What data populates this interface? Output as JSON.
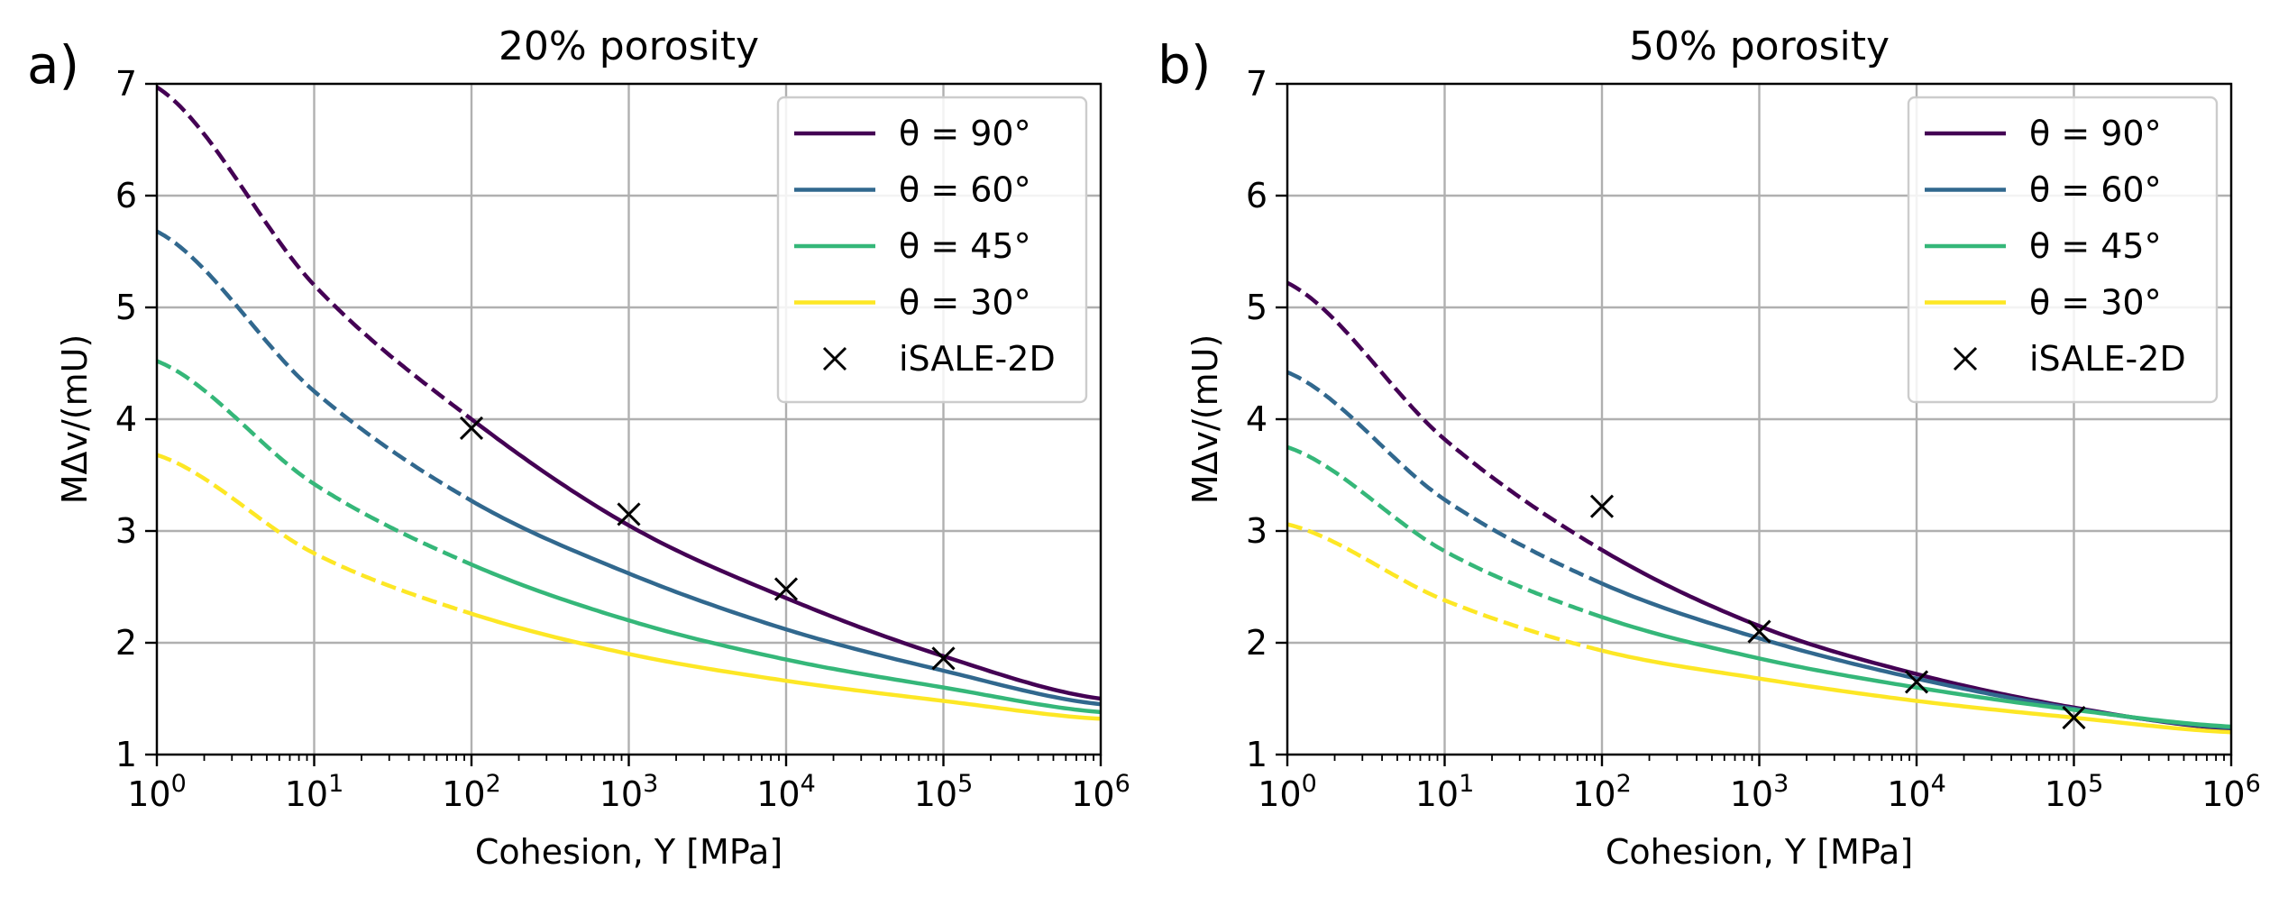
{
  "chart_data": [
    {
      "type": "line",
      "panel_label": "a)",
      "title": "20% porosity",
      "xlabel": "Cohesion, Y [MPa]",
      "ylabel": "MΔv/(mU)",
      "xscale": "log",
      "xlim": [
        1,
        1000000
      ],
      "ylim": [
        1,
        7
      ],
      "xticks": [
        1,
        10,
        100,
        1000,
        10000,
        100000,
        1000000
      ],
      "xtick_labels": [
        [
          "10",
          "0"
        ],
        [
          "10",
          "1"
        ],
        [
          "10",
          "2"
        ],
        [
          "10",
          "3"
        ],
        [
          "10",
          "4"
        ],
        [
          "10",
          "5"
        ],
        [
          "10",
          "6"
        ]
      ],
      "yticks": [
        1,
        2,
        3,
        4,
        5,
        6,
        7
      ],
      "ytick_labels": [
        "1",
        "2",
        "3",
        "4",
        "5",
        "6",
        "7"
      ],
      "grid": true,
      "legend_position": "top-right",
      "x": [
        1,
        10,
        100,
        1000,
        10000,
        100000,
        1000000
      ],
      "dashed_below_x": 100,
      "series": [
        {
          "name": "θ = 90°",
          "color": "#440154",
          "values": [
            6.97,
            5.2,
            4.0,
            3.05,
            2.4,
            1.88,
            1.5
          ]
        },
        {
          "name": "θ = 60°",
          "color": "#31688e",
          "values": [
            5.68,
            4.25,
            3.27,
            2.62,
            2.12,
            1.75,
            1.45
          ]
        },
        {
          "name": "θ = 45°",
          "color": "#35b779",
          "values": [
            4.52,
            3.42,
            2.7,
            2.2,
            1.85,
            1.6,
            1.38
          ]
        },
        {
          "name": "θ = 30°",
          "color": "#fde725",
          "values": [
            3.68,
            2.8,
            2.26,
            1.9,
            1.66,
            1.48,
            1.32
          ]
        }
      ],
      "markers": {
        "name": "iSALE-2D",
        "x": [
          100,
          1000,
          10000,
          100000
        ],
        "y": [
          3.92,
          3.15,
          2.48,
          1.86
        ]
      }
    },
    {
      "type": "line",
      "panel_label": "b)",
      "title": "50% porosity",
      "xlabel": "Cohesion, Y [MPa]",
      "ylabel": "MΔv/(mU)",
      "xscale": "log",
      "xlim": [
        1,
        1000000
      ],
      "ylim": [
        1,
        7
      ],
      "xticks": [
        1,
        10,
        100,
        1000,
        10000,
        100000,
        1000000
      ],
      "xtick_labels": [
        [
          "10",
          "0"
        ],
        [
          "10",
          "1"
        ],
        [
          "10",
          "2"
        ],
        [
          "10",
          "3"
        ],
        [
          "10",
          "4"
        ],
        [
          "10",
          "5"
        ],
        [
          "10",
          "6"
        ]
      ],
      "yticks": [
        1,
        2,
        3,
        4,
        5,
        6,
        7
      ],
      "ytick_labels": [
        "1",
        "2",
        "3",
        "4",
        "5",
        "6",
        "7"
      ],
      "grid": true,
      "legend_position": "top-right",
      "x": [
        1,
        10,
        100,
        1000,
        10000,
        100000,
        1000000
      ],
      "dashed_below_x": 100,
      "series": [
        {
          "name": "θ = 90°",
          "color": "#440154",
          "values": [
            5.22,
            3.82,
            2.83,
            2.15,
            1.72,
            1.42,
            1.23
          ]
        },
        {
          "name": "θ = 60°",
          "color": "#31688e",
          "values": [
            4.42,
            3.28,
            2.53,
            2.04,
            1.68,
            1.41,
            1.24
          ]
        },
        {
          "name": "θ = 45°",
          "color": "#35b779",
          "values": [
            3.75,
            2.82,
            2.23,
            1.86,
            1.6,
            1.4,
            1.25
          ]
        },
        {
          "name": "θ = 30°",
          "color": "#fde725",
          "values": [
            3.06,
            2.38,
            1.93,
            1.68,
            1.48,
            1.33,
            1.2
          ]
        }
      ],
      "markers": {
        "name": "iSALE-2D",
        "x": [
          100,
          1000,
          10000,
          100000
        ],
        "y": [
          3.22,
          2.1,
          1.65,
          1.33
        ]
      }
    }
  ]
}
